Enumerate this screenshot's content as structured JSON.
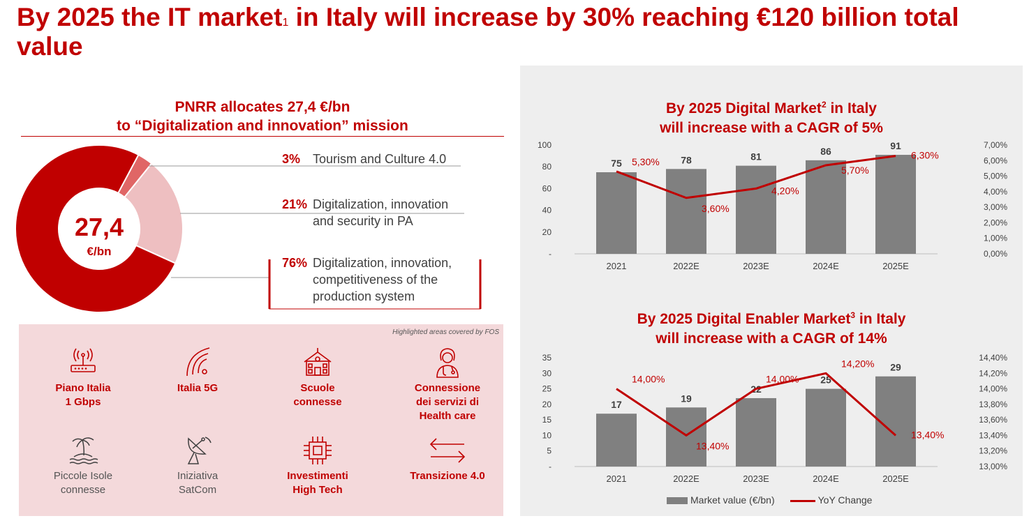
{
  "title": {
    "before": "By 2025 the IT market",
    "sup": "1",
    "after": " in Italy will increase by 30% reaching €120 billion total value"
  },
  "pnrr": {
    "title_line1": "PNRR allocates 27,4 €/bn",
    "title_line2": "to “Digitalization and innovation” mission",
    "center_value": "27,4",
    "center_unit": "€/bn",
    "colors": {
      "dark": "#c00000",
      "mid": "#e06666",
      "light": "#eebfc1"
    },
    "segments": [
      {
        "pct": "3%",
        "value": 3,
        "label_line1": "Tourism and Culture 4.0",
        "label_line2": "",
        "label_line3": ""
      },
      {
        "pct": "21%",
        "value": 21,
        "label_line1": "Digitalization, innovation",
        "label_line2": "and security in PA",
        "label_line3": ""
      },
      {
        "pct": "76%",
        "value": 76,
        "label_line1": "Digitalization, innovation,",
        "label_line2": "competitiveness of the",
        "label_line3": "production system"
      }
    ]
  },
  "fos": {
    "note": "Highlighted areas covered by FOS",
    "items": [
      {
        "line1": "Piano Italia",
        "line2": "1 Gbps",
        "line3": "",
        "icon": "router-icon",
        "highlighted": true
      },
      {
        "line1": "Italia 5G",
        "line2": "",
        "line3": "",
        "icon": "signal-5g-icon",
        "highlighted": true
      },
      {
        "line1": "Scuole",
        "line2": "connesse",
        "line3": "",
        "icon": "school-icon",
        "highlighted": true
      },
      {
        "line1": "Connessione",
        "line2": "dei servizi di",
        "line3": "Health care",
        "icon": "doctor-icon",
        "highlighted": true
      },
      {
        "line1": "Piccole Isole",
        "line2": "connesse",
        "line3": "",
        "icon": "island-icon",
        "highlighted": false
      },
      {
        "line1": "Iniziativa",
        "line2": "SatCom",
        "line3": "",
        "icon": "satellite-dish-icon",
        "highlighted": false
      },
      {
        "line1": "Investimenti",
        "line2": "High Tech",
        "line3": "",
        "icon": "chip-icon",
        "highlighted": true
      },
      {
        "line1": "Transizione 4.0",
        "line2": "",
        "line3": "",
        "icon": "transition-arrows-icon",
        "highlighted": true
      }
    ]
  },
  "chart_data": [
    {
      "type": "bar",
      "title_line1_before": "By 2025 Digital Market",
      "title_sup": "2",
      "title_line1_after": " in Italy",
      "title_line2": "will increase with a CAGR of 5%",
      "categories": [
        "2021",
        "2022E",
        "2023E",
        "2024E",
        "2025E"
      ],
      "series": [
        {
          "name": "Market value (€/bn)",
          "type": "bar",
          "values": [
            75,
            78,
            81,
            86,
            91
          ],
          "labels": [
            "75",
            "78",
            "81",
            "86",
            "91"
          ]
        },
        {
          "name": "YoY Change",
          "type": "line",
          "axis": "right",
          "values": [
            5.3,
            3.6,
            4.2,
            5.7,
            6.3
          ],
          "labels": [
            "5,30%",
            "3,60%",
            "4,20%",
            "5,70%",
            "6,30%"
          ]
        }
      ],
      "ylim": [
        0,
        100
      ],
      "yticks": [
        "-",
        "20",
        "40",
        "60",
        "80",
        "100"
      ],
      "y2lim": [
        0,
        7
      ],
      "y2ticks": [
        "0,00%",
        "1,00%",
        "2,00%",
        "3,00%",
        "4,00%",
        "5,00%",
        "6,00%",
        "7,00%"
      ],
      "grid": false,
      "colors": {
        "bar": "#808080",
        "line": "#c00000"
      }
    },
    {
      "type": "bar",
      "title_line1_before": "By 2025 Digital Enabler Market",
      "title_sup": "3",
      "title_line1_after": " in Italy",
      "title_line2": "will increase with a CAGR of 14%",
      "categories": [
        "2021",
        "2022E",
        "2023E",
        "2024E",
        "2025E"
      ],
      "series": [
        {
          "name": "Market value (€/bn)",
          "type": "bar",
          "values": [
            17,
            19,
            22,
            25,
            29
          ],
          "labels": [
            "17",
            "19",
            "22",
            "25",
            "29"
          ]
        },
        {
          "name": "YoY Change",
          "type": "line",
          "axis": "right",
          "values": [
            14.0,
            13.4,
            14.0,
            14.2,
            13.4
          ],
          "labels": [
            "14,00%",
            "13,40%",
            "14,00%",
            "14,20%",
            "13,40%"
          ]
        }
      ],
      "ylim": [
        0,
        35
      ],
      "yticks": [
        "-",
        "5",
        "10",
        "15",
        "20",
        "25",
        "30",
        "35"
      ],
      "y2lim": [
        13.0,
        14.4
      ],
      "y2ticks": [
        "13,00%",
        "13,20%",
        "13,40%",
        "13,60%",
        "13,80%",
        "14,00%",
        "14,20%",
        "14,40%"
      ],
      "grid": false,
      "colors": {
        "bar": "#808080",
        "line": "#c00000"
      }
    }
  ],
  "legend": {
    "bar_label": "Market value (€/bn)",
    "line_label": "YoY Change",
    "placement": "bottom"
  }
}
